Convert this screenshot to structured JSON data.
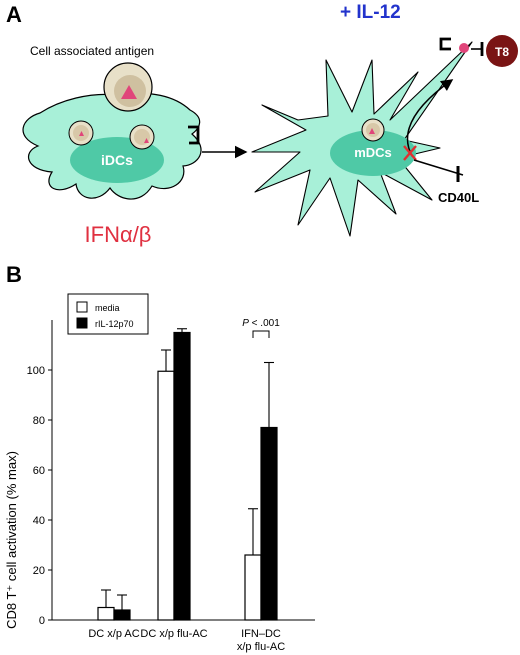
{
  "panel_a": {
    "letter": "A",
    "il12_label": "+ IL-12",
    "antigen_label": "Cell associated antigen",
    "idc_label": "iDCs",
    "mdc_label": "mDCs",
    "ifn_label": "IFNα/β",
    "t8_label": "T8",
    "cd40l_label": "CD40L",
    "colors": {
      "cell_fill": "#a8f0d8",
      "nucleus_fill": "#4fc9a6",
      "antigen_fill": "#e8e0c8",
      "triangle": "#e0457a",
      "t8_fill": "#7a1414",
      "il12_text": "#2233cc",
      "ifn_text": "#e03040",
      "x_mark": "#e03030"
    }
  },
  "panel_b": {
    "letter": "B",
    "chart_data": {
      "type": "bar",
      "categories": [
        [
          "DC x/p AC"
        ],
        [
          "DC x/p flu-AC"
        ],
        [
          "IFN–DC",
          "x/p flu-AC"
        ]
      ],
      "series": [
        {
          "name": "media",
          "values": [
            5,
            99.5,
            26
          ],
          "errors": [
            7,
            8.5,
            18.5
          ],
          "color": "#ffffff"
        },
        {
          "name": "rIL-12p70",
          "values": [
            4,
            115,
            77
          ],
          "errors": [
            6,
            1.5,
            26
          ],
          "color": "#000000"
        }
      ],
      "ylabel": "CD8 T⁺ cell activation (% max)",
      "ylim": [
        0,
        120
      ],
      "yticks": [
        0,
        20,
        40,
        60,
        80,
        100
      ],
      "legend_position": "top-left",
      "annotation": {
        "text_italic": "P",
        "text_rest": " < .001",
        "category_index": 2
      }
    }
  }
}
